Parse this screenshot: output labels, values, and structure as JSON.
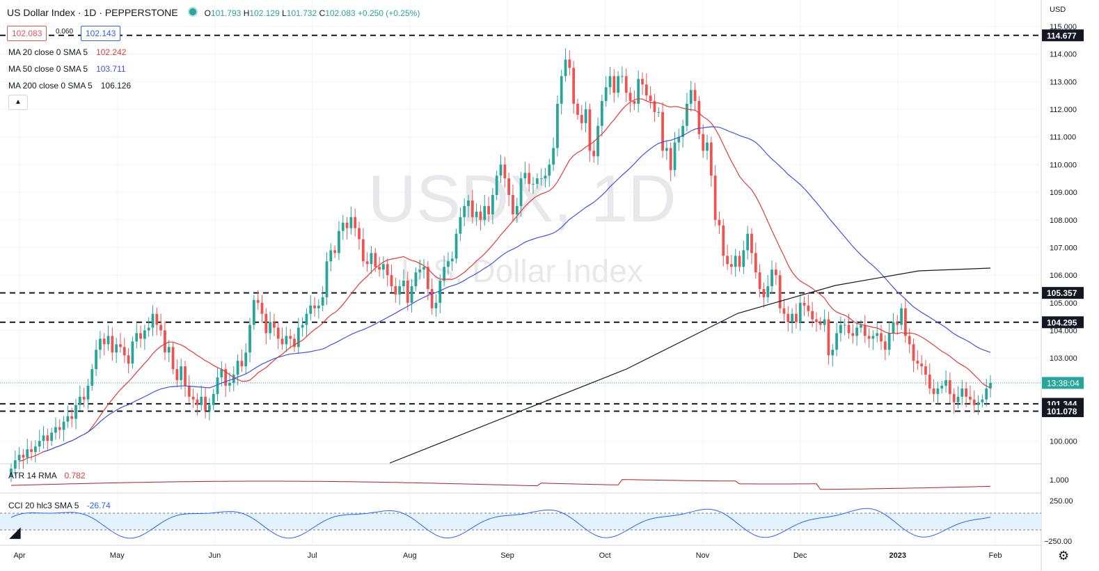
{
  "header": {
    "title": "US Dollar Index · 1D · PEPPERSTONE",
    "ohlc": [
      {
        "k": "O",
        "v": "101.793"
      },
      {
        "k": "H",
        "v": "102.129"
      },
      {
        "k": "L",
        "v": "101.732"
      },
      {
        "k": "C",
        "v": "102.083"
      },
      {
        "k": "",
        "v": "+0.250 (+0.25%)"
      }
    ],
    "bid": "102.083",
    "spread": "0.060",
    "ask": "102.143"
  },
  "indicators": {
    "ma20": {
      "label": "MA 20 close 0 SMA 5",
      "value": "102.242",
      "color": "#e53935"
    },
    "ma50": {
      "label": "MA 50 close 0 SMA 5",
      "value": "103.711",
      "color": "#3f51e5"
    },
    "ma200": {
      "label": "MA 200 close 0 SMA 5",
      "value": "106.126",
      "color": "#131722"
    },
    "collapse_icon": "chevron-up-icon"
  },
  "watermark": {
    "symbol": "USDX, 1D",
    "name": "U.S. Dollar Index"
  },
  "atr": {
    "label": "ATR 14 RMA",
    "value": "0.782",
    "axis_label": "1.000"
  },
  "cci": {
    "label": "CCI 20 hlc3 SMA 5",
    "value": "-26.74",
    "axis_top": "250.00",
    "axis_bottom": "−250.00"
  },
  "price_axis": {
    "currency": "USD",
    "ticks": [
      "115.000",
      "114.000",
      "113.000",
      "112.000",
      "111.000",
      "110.000",
      "109.000",
      "108.000",
      "107.000",
      "106.000",
      "105.000",
      "104.000",
      "103.000",
      "102.000",
      "101.000",
      "100.000"
    ],
    "last_price_timer": "13:38:04"
  },
  "time_axis": {
    "ticks": [
      "Apr",
      "May",
      "Jun",
      "Jul",
      "Aug",
      "Sep",
      "Oct",
      "Nov",
      "Dec",
      "2023",
      "Feb"
    ]
  },
  "colors": {
    "up": "#26a69a",
    "down": "#ef5350",
    "level_line": "#131722",
    "cci_band": "#e3f2fd"
  },
  "chart_data": {
    "type": "candlestick",
    "title": "US Dollar Index · 1D · PEPPERSTONE",
    "xlabel": "",
    "ylabel": "",
    "ylim": [
      99.2,
      115.2
    ],
    "x_ticks": [
      "Apr",
      "May",
      "Jun",
      "Jul",
      "Aug",
      "Sep",
      "Oct",
      "Nov",
      "Dec",
      "2023",
      "Feb"
    ],
    "horizontal_levels": [
      114.677,
      105.357,
      104.295,
      101.344,
      101.078
    ],
    "closes": [
      99.0,
      99.3,
      99.5,
      99.4,
      99.7,
      99.6,
      99.8,
      100.0,
      100.2,
      100.0,
      100.3,
      100.5,
      100.4,
      100.7,
      100.9,
      100.8,
      101.3,
      101.6,
      101.5,
      102.0,
      102.6,
      103.3,
      103.7,
      103.5,
      103.8,
      103.2,
      103.5,
      103.4,
      103.1,
      102.8,
      103.6,
      103.9,
      103.7,
      104.0,
      104.1,
      104.6,
      104.2,
      104.0,
      103.2,
      103.4,
      102.6,
      102.2,
      102.7,
      102.0,
      101.6,
      101.5,
      101.3,
      101.6,
      101.1,
      101.3,
      101.7,
      102.3,
      102.6,
      102.0,
      102.1,
      102.4,
      102.9,
      102.7,
      103.2,
      104.2,
      105.1,
      105.0,
      104.6,
      103.9,
      104.3,
      104.1,
      103.7,
      103.5,
      103.8,
      103.7,
      103.4,
      104.1,
      104.2,
      104.6,
      104.9,
      104.8,
      104.9,
      105.2,
      106.5,
      106.9,
      106.8,
      107.6,
      107.9,
      107.7,
      108.1,
      107.7,
      107.3,
      106.5,
      106.4,
      106.8,
      106.3,
      106.2,
      106.4,
      106.0,
      105.6,
      105.3,
      105.6,
      105.8,
      105.0,
      105.6,
      106.1,
      106.2,
      106.3,
      105.5,
      104.8,
      105.0,
      105.8,
      106.3,
      106.5,
      106.6,
      107.5,
      108.1,
      108.5,
      108.7,
      108.1,
      108.3,
      108.0,
      108.5,
      108.2,
      108.9,
      109.6,
      110.0,
      109.5,
      108.9,
      108.2,
      108.5,
      109.5,
      109.7,
      109.3,
      109.3,
      109.5,
      109.5,
      109.6,
      110.0,
      110.6,
      112.2,
      113.2,
      113.8,
      113.5,
      112.2,
      111.8,
      111.5,
      112.0,
      110.5,
      110.3,
      111.4,
      112.3,
      112.8,
      113.2,
      112.6,
      113.2,
      113.2,
      112.6,
      112.3,
      112.2,
      113.1,
      112.9,
      112.5,
      112.3,
      111.9,
      111.9,
      110.5,
      110.6,
      109.8,
      110.8,
      111.0,
      111.4,
      112.2,
      112.7,
      112.3,
      111.1,
      110.5,
      110.8,
      109.6,
      108.0,
      107.8,
      106.7,
      106.4,
      106.3,
      106.7,
      106.3,
      106.9,
      107.5,
      106.8,
      106.1,
      105.5,
      105.2,
      105.6,
      106.2,
      106.0,
      104.8,
      104.6,
      104.3,
      104.6,
      104.3,
      105.0,
      104.9,
      104.7,
      104.4,
      104.3,
      104.2,
      104.4,
      103.1,
      103.3,
      103.9,
      104.2,
      104.2,
      103.9,
      103.8,
      104.1,
      104.2,
      103.8,
      103.7,
      103.8,
      103.9,
      103.6,
      103.3,
      103.9,
      104.3,
      104.2,
      104.8,
      103.8,
      103.5,
      102.9,
      102.8,
      102.7,
      102.4,
      101.9,
      101.7,
      101.9,
      102.0,
      102.2,
      101.7,
      101.4,
      101.6,
      101.9,
      101.6,
      101.5,
      101.3,
      101.4,
      101.5,
      101.9,
      102.1
    ]
  }
}
